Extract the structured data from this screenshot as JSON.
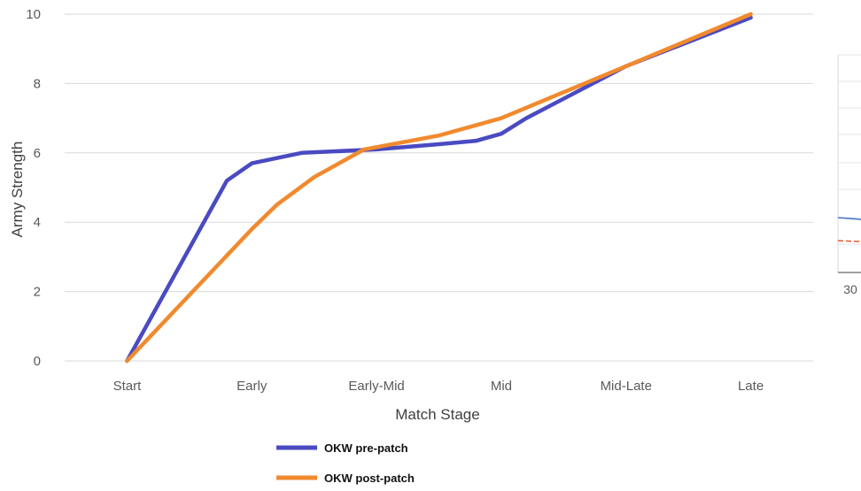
{
  "chart_data": {
    "type": "line",
    "title": "",
    "xlabel": "Match Stage",
    "ylabel": "Army Strength",
    "categories": [
      "Start",
      "Early",
      "Early-Mid",
      "Mid",
      "Mid-Late",
      "Late"
    ],
    "ylim": [
      0,
      10
    ],
    "yticks": [
      "0",
      "2",
      "4",
      "6",
      "8",
      "10"
    ],
    "grid": true,
    "legend_position": "bottom-left",
    "series": [
      {
        "name": "OKW pre-patch",
        "color": "#4a4ac2",
        "x": [
          0,
          0.8,
          1.0,
          1.4,
          2.0,
          2.5,
          2.8,
          3.0,
          3.2,
          4.0,
          5.0
        ],
        "y": [
          0,
          5.2,
          5.7,
          6.0,
          6.1,
          6.25,
          6.35,
          6.55,
          7.0,
          8.5,
          9.9
        ]
      },
      {
        "name": "OKW post-patch",
        "color": "#f18a2e",
        "x": [
          0,
          1.0,
          1.2,
          1.5,
          1.9,
          2.5,
          2.8,
          3.0,
          4.0,
          5.0
        ],
        "y": [
          0,
          3.8,
          4.5,
          5.3,
          6.1,
          6.5,
          6.8,
          7.0,
          8.5,
          10.0
        ]
      }
    ],
    "partial_chart": {
      "tick_label": "30",
      "series": [
        {
          "color": "#4472c4",
          "style": "solid"
        },
        {
          "color": "#e15a2a",
          "style": "dashed"
        }
      ]
    }
  }
}
